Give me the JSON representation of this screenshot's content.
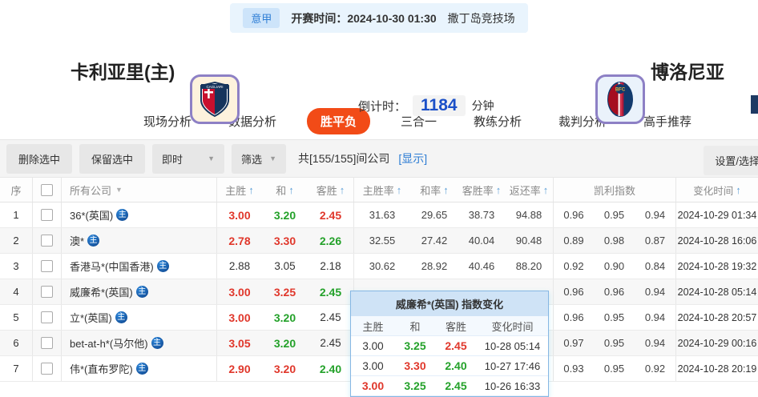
{
  "match_bar": {
    "league": "意甲",
    "kickoff": "开赛时间：2024-10-30 01:30",
    "venue": "撒丁岛竞技场"
  },
  "match_header": {
    "home_name": "卡利亚里(主)",
    "away_name": "博洛尼亚",
    "countdown_label": "倒计时：",
    "countdown_value": "1184",
    "countdown_unit": "分钟"
  },
  "tabs": [
    {
      "label": "现场分析",
      "active": false
    },
    {
      "label": "数据分析",
      "active": false
    },
    {
      "label": "胜平负",
      "active": true
    },
    {
      "label": "三合一",
      "active": false
    },
    {
      "label": "教练分析",
      "active": false
    },
    {
      "label": "裁判分析",
      "active": false
    },
    {
      "label": "高手推荐",
      "active": false
    }
  ],
  "toolbar": {
    "delete_selected": "删除选中",
    "keep_selected": "保留选中",
    "time_mode": "即时",
    "filter": "筛选",
    "company_count": "共[155/155]间公司",
    "show_link": "[显示]",
    "settings": "设置/选择"
  },
  "table": {
    "badge_text": "主",
    "headers": {
      "seq": "序",
      "company": "所有公司",
      "home": "主胜",
      "draw": "和",
      "away": "客胜",
      "home_rate": "主胜率",
      "draw_rate": "和率",
      "away_rate": "客胜率",
      "return_rate": "返还率",
      "kelly": "凯利指数",
      "change_time": "变化时间"
    },
    "rows": [
      {
        "seq": "1",
        "company": "36*(英国)",
        "badge": true,
        "odds": [
          {
            "v": "3.00",
            "c": "up"
          },
          {
            "v": "3.20",
            "c": "down"
          },
          {
            "v": "2.45",
            "c": "up"
          }
        ],
        "rates": [
          "31.63",
          "29.65",
          "38.73",
          "94.88"
        ],
        "kelly": [
          "0.96",
          "0.95",
          "0.94"
        ],
        "time": "2024-10-29 01:34"
      },
      {
        "seq": "2",
        "company": "澳*",
        "badge": true,
        "odds": [
          {
            "v": "2.78",
            "c": "up"
          },
          {
            "v": "3.30",
            "c": "up"
          },
          {
            "v": "2.26",
            "c": "down"
          }
        ],
        "rates": [
          "32.55",
          "27.42",
          "40.04",
          "90.48"
        ],
        "kelly": [
          "0.89",
          "0.98",
          "0.87"
        ],
        "time": "2024-10-28 16:06"
      },
      {
        "seq": "3",
        "company": "香港马*(中国香港)",
        "badge": true,
        "odds": [
          {
            "v": "2.88",
            "c": "flat"
          },
          {
            "v": "3.05",
            "c": "flat"
          },
          {
            "v": "2.18",
            "c": "flat"
          }
        ],
        "rates": [
          "30.62",
          "28.92",
          "40.46",
          "88.20"
        ],
        "kelly": [
          "0.92",
          "0.90",
          "0.84"
        ],
        "time": "2024-10-28 19:32"
      },
      {
        "seq": "4",
        "company": "威廉希*(英国)",
        "badge": true,
        "odds": [
          {
            "v": "3.00",
            "c": "up"
          },
          {
            "v": "3.25",
            "c": "up"
          },
          {
            "v": "2.45",
            "c": "down"
          }
        ],
        "rates": [],
        "kelly": [
          "0.96",
          "0.96",
          "0.94"
        ],
        "time": "2024-10-28 05:14"
      },
      {
        "seq": "5",
        "company": "立*(英国)",
        "badge": true,
        "odds": [
          {
            "v": "3.00",
            "c": "up"
          },
          {
            "v": "3.20",
            "c": "down"
          },
          {
            "v": "2.45",
            "c": "flat"
          }
        ],
        "rates": [],
        "kelly": [
          "0.96",
          "0.95",
          "0.94"
        ],
        "time": "2024-10-28 20:57"
      },
      {
        "seq": "6",
        "company": "bet-at-h*(马尔他)",
        "badge": true,
        "odds": [
          {
            "v": "3.05",
            "c": "up"
          },
          {
            "v": "3.20",
            "c": "down"
          },
          {
            "v": "2.45",
            "c": "flat"
          }
        ],
        "rates": [],
        "kelly": [
          "0.97",
          "0.95",
          "0.94"
        ],
        "time": "2024-10-29 00:16"
      },
      {
        "seq": "7",
        "company": "伟*(直布罗陀)",
        "badge": true,
        "odds": [
          {
            "v": "2.90",
            "c": "up"
          },
          {
            "v": "3.20",
            "c": "up"
          },
          {
            "v": "2.40",
            "c": "down"
          }
        ],
        "rates": [],
        "kelly": [
          "0.93",
          "0.95",
          "0.92"
        ],
        "time": "2024-10-28 20:19"
      }
    ]
  },
  "popup": {
    "title": "威廉希*(英国) 指数变化",
    "headers": [
      "主胜",
      "和",
      "客胜",
      "变化时间"
    ],
    "rows": [
      {
        "odds": [
          {
            "v": "3.00",
            "c": "flat"
          },
          {
            "v": "3.25",
            "c": "down"
          },
          {
            "v": "2.45",
            "c": "up"
          }
        ],
        "time": "10-28 05:14"
      },
      {
        "odds": [
          {
            "v": "3.00",
            "c": "flat"
          },
          {
            "v": "3.30",
            "c": "up"
          },
          {
            "v": "2.40",
            "c": "down"
          }
        ],
        "time": "10-27 17:46"
      },
      {
        "odds": [
          {
            "v": "3.00",
            "c": "up"
          },
          {
            "v": "3.25",
            "c": "down"
          },
          {
            "v": "2.45",
            "c": "down"
          }
        ],
        "time": "10-26 16:33"
      }
    ]
  },
  "colors": {
    "odds_up_red": "#e0372b",
    "odds_down_green": "#23a129",
    "accent_tab": "#f24b17",
    "link_blue": "#2b7bd3",
    "countdown_blue": "#1b50c8"
  }
}
